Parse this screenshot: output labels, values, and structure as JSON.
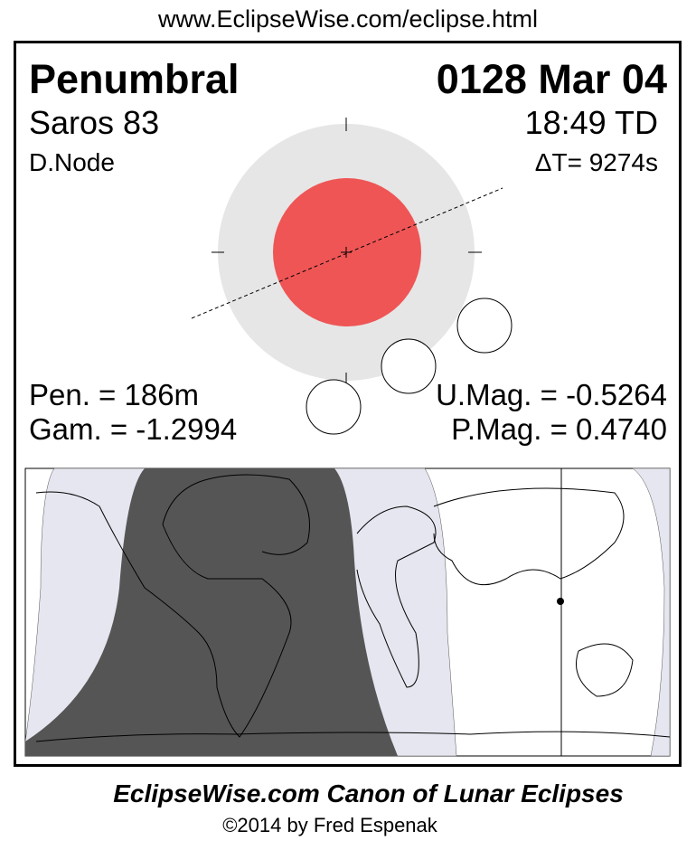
{
  "url": "www.EclipseWise.com/eclipse.html",
  "eclipse": {
    "type": "Penumbral",
    "date": "0128 Mar 04",
    "saros": "Saros  83",
    "time": "18:49 TD",
    "node": "D.Node",
    "delta_t": "ΔT=   9274s",
    "pen_duration": "Pen. = 186m",
    "gamma": "Gam. = -1.2994",
    "umbral_mag": "U.Mag. = -0.5264",
    "penumbral_mag": "P.Mag. = 0.4740"
  },
  "colors": {
    "umbra": "#EF5555",
    "penumbra": "#E6E6E6",
    "night_region": "#555555",
    "penumbral_visibility_region": "#E6E6F0"
  },
  "footer": {
    "canon": "EclipseWise.com Canon of Lunar Eclipses",
    "copyright": "©2014 by Fred Espenak"
  }
}
